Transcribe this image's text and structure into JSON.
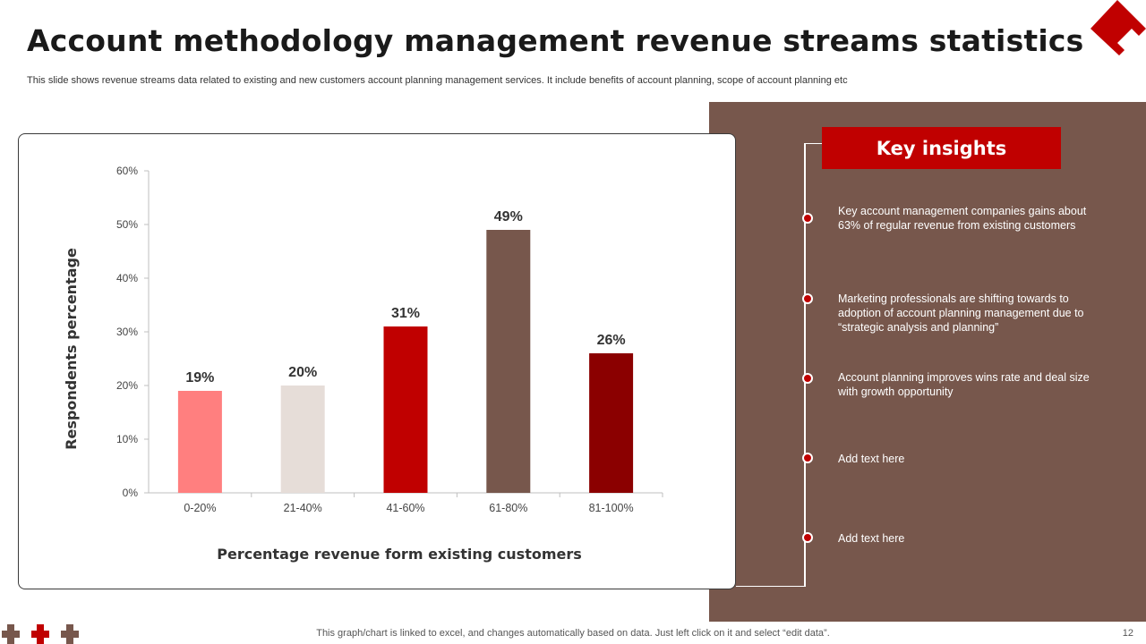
{
  "slide": {
    "title": "Account methodology management revenue streams statistics",
    "subtitle": "This slide shows revenue streams data related to existing and new customers account planning management services. It include benefits of account planning, scope of account planning etc",
    "footer": "This graph/chart is linked to excel,  and changes automatically based on data. Just left click on it and select “edit data”.",
    "page_number": "12"
  },
  "insights": {
    "header": "Key insights",
    "items": [
      "Key account management companies gains about 63% of regular revenue  from existing customers",
      "Marketing professionals are shifting towards to adoption of account planning management due to “strategic analysis and planning”",
      "Account planning improves  wins rate and deal size with growth opportunity",
      "Add text here",
      "Add text here"
    ]
  },
  "colors": {
    "accent": "#c00000",
    "panel": "#77574c",
    "dark_red": "#8b0000",
    "pink": "#ff7f7f",
    "beige": "#e6ddd8"
  },
  "chart_data": {
    "type": "bar",
    "title": "",
    "xlabel": "Percentage revenue form existing customers",
    "ylabel": "Respondents percentage",
    "categories": [
      "0-20%",
      "21-40%",
      "41-60%",
      "61-80%",
      "81-100%"
    ],
    "values": [
      19,
      20,
      31,
      49,
      26
    ],
    "value_labels": [
      "19%",
      "20%",
      "31%",
      "49%",
      "26%"
    ],
    "bar_colors": [
      "#ff7f7f",
      "#e6ddd8",
      "#c00000",
      "#77574c",
      "#8b0000"
    ],
    "ylim": [
      0,
      60
    ],
    "yticks": [
      0,
      10,
      20,
      30,
      40,
      50,
      60
    ],
    "ytick_labels": [
      "0%",
      "10%",
      "20%",
      "30%",
      "40%",
      "50%",
      "60%"
    ],
    "grid": false
  }
}
